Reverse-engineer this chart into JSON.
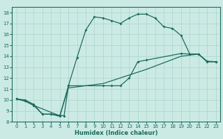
{
  "xlabel": "Humidex (Indice chaleur)",
  "bg_color": "#cceae4",
  "line_color": "#1a6b5e",
  "grid_color": "#b0d8d0",
  "xlim": [
    -0.5,
    23.5
  ],
  "ylim": [
    8,
    18.5
  ],
  "xticks": [
    0,
    1,
    2,
    3,
    4,
    5,
    6,
    7,
    8,
    9,
    10,
    11,
    12,
    13,
    14,
    15,
    16,
    17,
    18,
    19,
    20,
    21,
    22,
    23
  ],
  "yticks": [
    8,
    9,
    10,
    11,
    12,
    13,
    14,
    15,
    16,
    17,
    18
  ],
  "line1_x": [
    0,
    1,
    2,
    3,
    4,
    5,
    6,
    7,
    8,
    9,
    10,
    11,
    12,
    13,
    14,
    15,
    16,
    17,
    18,
    19,
    20,
    21,
    22,
    23
  ],
  "line1_y": [
    10.1,
    10.0,
    9.6,
    8.7,
    8.7,
    8.5,
    11.3,
    13.9,
    16.4,
    17.6,
    17.5,
    17.25,
    17.0,
    17.5,
    17.85,
    17.85,
    17.5,
    16.7,
    16.55,
    15.9,
    14.2,
    14.2,
    13.55,
    13.5
  ],
  "line2_x": [
    0,
    1,
    2,
    3,
    4,
    5,
    5.5,
    6,
    10,
    11,
    12,
    13,
    14,
    15,
    19,
    20,
    21,
    22,
    23
  ],
  "line2_y": [
    10.1,
    9.9,
    9.5,
    8.7,
    8.7,
    8.6,
    8.55,
    11.3,
    11.3,
    11.3,
    11.3,
    12.0,
    13.5,
    13.65,
    14.25,
    14.2,
    14.2,
    13.5,
    13.5
  ],
  "line3_x": [
    0,
    1,
    2,
    5,
    6,
    10,
    15,
    19,
    20,
    21,
    22,
    23
  ],
  "line3_y": [
    10.1,
    9.9,
    9.5,
    8.55,
    11.1,
    11.5,
    12.8,
    14.0,
    14.1,
    14.2,
    13.5,
    13.5
  ]
}
